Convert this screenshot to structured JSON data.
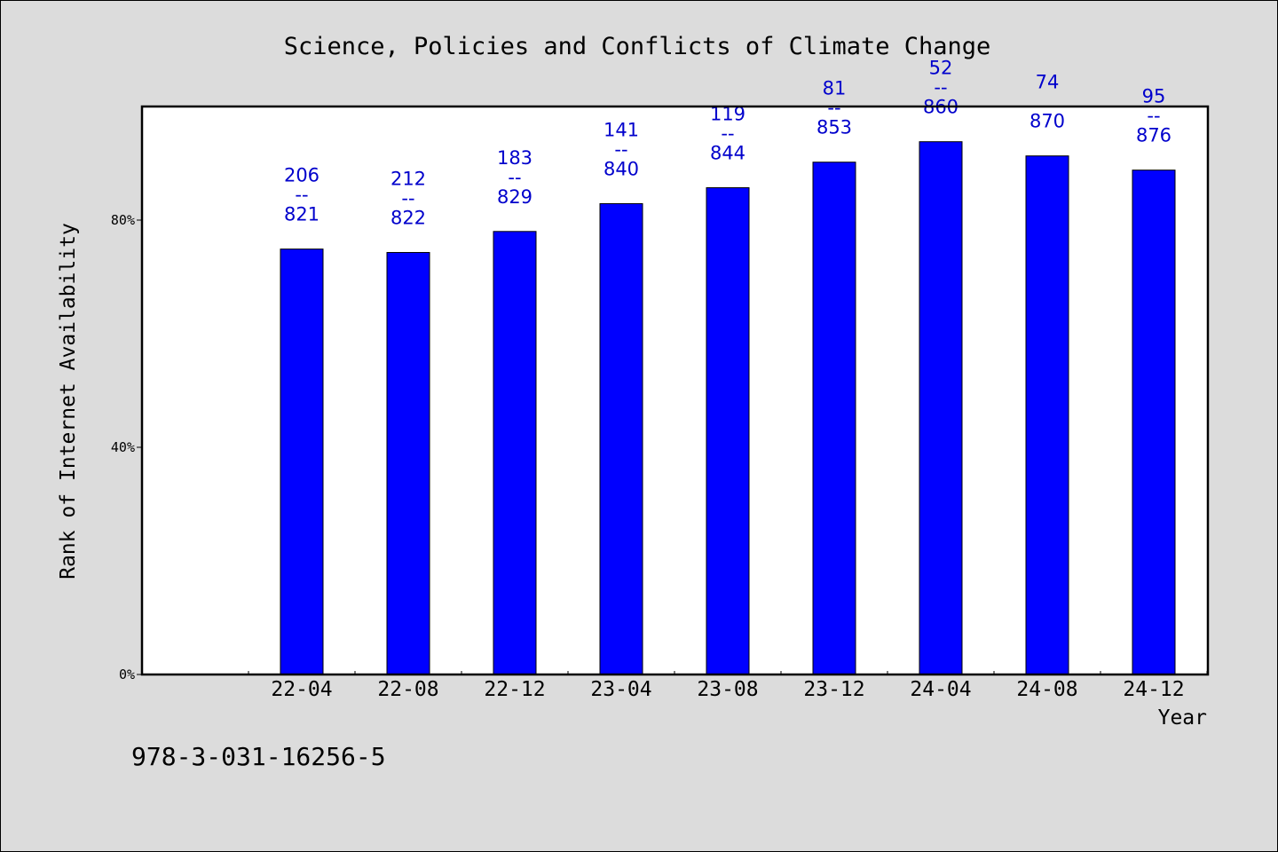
{
  "chart_data": {
    "type": "bar",
    "title": "Science, Policies and Conflicts of Climate Change",
    "xlabel": "Year",
    "ylabel": "Rank of Internet Availability",
    "ylim": [
      0,
      100
    ],
    "y_ticks": [
      {
        "value": 0,
        "label": "0%"
      },
      {
        "value": 40,
        "label": "40%"
      },
      {
        "value": 80,
        "label": "80%"
      }
    ],
    "grid": false,
    "legend": "none",
    "categories": [
      "22-04",
      "22-08",
      "22-12",
      "23-04",
      "23-08",
      "23-12",
      "24-04",
      "24-08",
      "24-12"
    ],
    "values": [
      74.9,
      74.3,
      78.0,
      82.9,
      85.7,
      90.2,
      93.8,
      91.3,
      88.8
    ],
    "data_labels": [
      [
        "206",
        "--",
        "821"
      ],
      [
        "212",
        "--",
        "822"
      ],
      [
        "183",
        "--",
        "829"
      ],
      [
        "141",
        "--",
        "840"
      ],
      [
        "119",
        "--",
        "844"
      ],
      [
        "81",
        "--",
        "853"
      ],
      [
        "52",
        "--",
        "860"
      ],
      [
        "74",
        "",
        "870"
      ],
      [
        "95",
        "--",
        "876"
      ]
    ],
    "bar_color": "#0000ff",
    "label_color": "#0000cc"
  },
  "footer": {
    "isbn": "978-3-031-16256-5"
  }
}
